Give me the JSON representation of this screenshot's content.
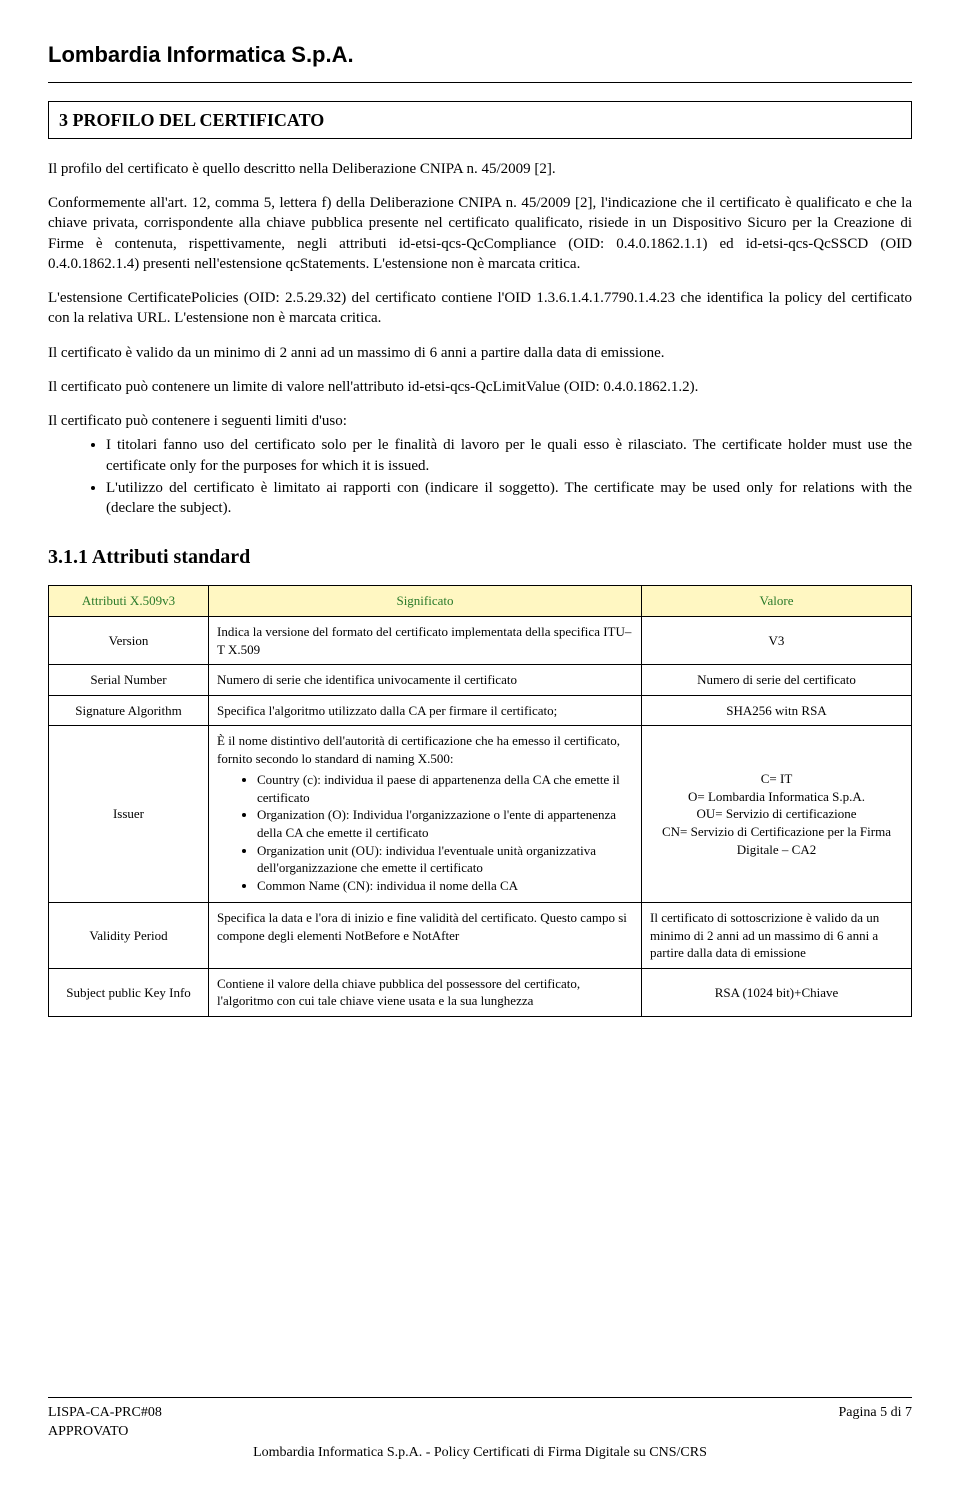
{
  "header": {
    "company": "Lombardia Informatica S.p.A."
  },
  "section": {
    "number": "3",
    "title": "PROFILO DEL CERTIFICATO",
    "heading_full": "3   PROFILO DEL CERTIFICATO"
  },
  "paragraphs": {
    "p1": "Il profilo del certificato è quello descritto nella Deliberazione CNIPA n. 45/2009 [2].",
    "p2": "Conformemente all'art. 12, comma 5, lettera f) della Deliberazione CNIPA n. 45/2009 [2], l'indicazione che il certificato è qualificato e che la chiave privata, corrispondente alla chiave pubblica presente nel certificato qualificato, risiede in un Dispositivo Sicuro per la Creazione di Firme è contenuta, rispettivamente, negli attributi id-etsi-qcs-QcCompliance (OID: 0.4.0.1862.1.1) ed id-etsi-qcs-QcSSCD (OID 0.4.0.1862.1.4) presenti nell'estensione qcStatements. L'estensione non è marcata critica.",
    "p3": "L'estensione CertificatePolicies (OID: 2.5.29.32) del certificato contiene l'OID 1.3.6.1.4.1.7790.1.4.23 che identifica la policy del certificato con la relativa URL. L'estensione non è marcata critica.",
    "p4": "Il certificato è valido da un minimo di 2 anni ad un massimo di 6 anni a partire dalla data di emissione.",
    "p5": "Il certificato può contenere un limite di valore nell'attributo id-etsi-qcs-QcLimitValue (OID: 0.4.0.1862.1.2).",
    "p6": "Il certificato può contenere i seguenti limiti d'uso:",
    "b1": "I titolari fanno uso del certificato solo per le finalità di lavoro per le quali esso è rilasciato. The certificate holder must use the certificate only for the purposes for which it is issued.",
    "b2": "L'utilizzo del certificato è limitato ai rapporti con (indicare il soggetto). The certificate may be used only for relations with the (declare the subject)."
  },
  "subsection": {
    "heading": "3.1.1   Attributi standard"
  },
  "table": {
    "headers": {
      "c1": "Attributi X.509v3",
      "c2": "Significato",
      "c3": "Valore"
    },
    "rows": [
      {
        "attr": "Version",
        "sig": "Indica la versione del formato del certificato implementata della specifica ITU–T X.509",
        "val": "V3"
      },
      {
        "attr": "Serial Number",
        "sig": "Numero di serie che identifica univocamente il certificato",
        "val": "Numero di serie del certificato"
      },
      {
        "attr": "Signature Algorithm",
        "sig": "Specifica l'algoritmo utilizzato dalla CA per firmare il certificato;",
        "val": "SHA256 witn RSA"
      },
      {
        "attr": "Issuer",
        "sig_intro": "È il nome distintivo dell'autorità di certificazione che ha emesso il certificato, fornito secondo lo standard di naming X.500:",
        "sig_items": [
          "Country (c): individua il paese di appartenenza della CA che emette il certificato",
          "Organization (O): Individua l'organizzazione o l'ente di appartenenza della CA che emette il certificato",
          "Organization unit (OU): individua l'eventuale unità organizzativa dell'organizzazione che emette il certificato",
          "Common Name (CN): individua il nome della CA"
        ],
        "val": "C= IT\nO= Lombardia Informatica S.p.A.\nOU= Servizio di certificazione\nCN= Servizio di Certificazione per la Firma Digitale – CA2"
      },
      {
        "attr": "Validity Period",
        "sig": "Specifica la data e l'ora di inizio e fine validità del certificato. Questo campo si compone degli elementi NotBefore e NotAfter",
        "val": "Il certificato di sottoscrizione è valido da un minimo di 2 anni ad un massimo di 6 anni a partire dalla  data di emissione"
      },
      {
        "attr": "Subject public Key Info",
        "sig": "Contiene il valore della chiave pubblica del possessore del certificato, l'algoritmo con cui tale chiave viene usata e la sua lunghezza",
        "val": "RSA (1024 bit)+Chiave"
      }
    ]
  },
  "footer": {
    "doc_id": "LISPA-CA-PRC#08",
    "status": "APPROVATO",
    "page": "Pagina 5 di 7",
    "bottom": "Lombardia Informatica S.p.A. - Policy Certificati di Firma Digitale su CNS/CRS"
  }
}
